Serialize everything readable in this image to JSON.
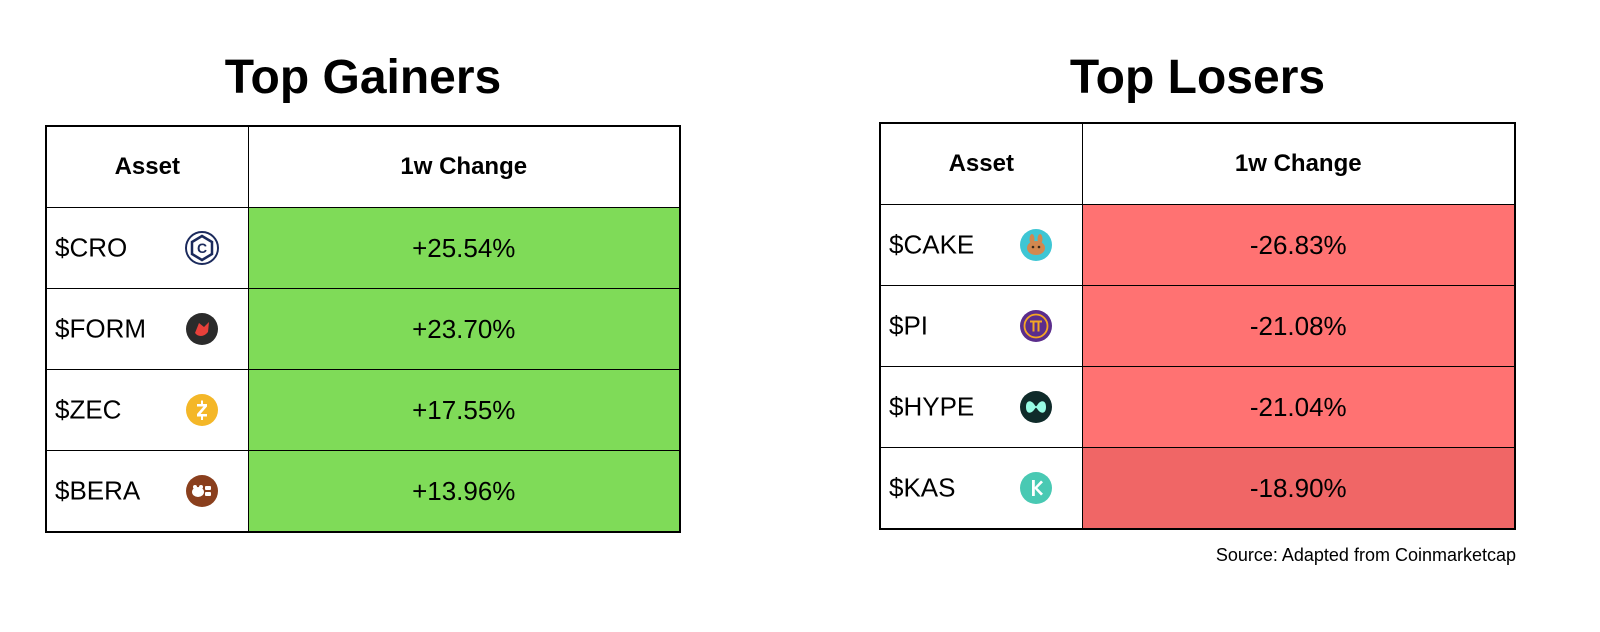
{
  "colors": {
    "gain_fill": "#7fdb58",
    "loss_fill": "#ff7272",
    "loss_fill_highlight": "#f06666",
    "border": "#000000"
  },
  "chart_data": [
    {
      "type": "table",
      "title": "Top Gainers",
      "columns": [
        "Asset",
        "1w Change"
      ],
      "rows": [
        {
          "asset": "$CRO",
          "icon": "cro-coin-icon",
          "change": "+25.54%",
          "value": 25.54
        },
        {
          "asset": "$FORM",
          "icon": "form-coin-icon",
          "change": "+23.70%",
          "value": 23.7
        },
        {
          "asset": "$ZEC",
          "icon": "zec-coin-icon",
          "change": "+17.55%",
          "value": 17.55
        },
        {
          "asset": "$BERA",
          "icon": "bera-coin-icon",
          "change": "+13.96%",
          "value": 13.96
        }
      ]
    },
    {
      "type": "table",
      "title": "Top Losers",
      "columns": [
        "Asset",
        "1w Change"
      ],
      "rows": [
        {
          "asset": "$CAKE",
          "icon": "cake-coin-icon",
          "change": "-26.83%",
          "value": -26.83
        },
        {
          "asset": "$PI",
          "icon": "pi-coin-icon",
          "change": "-21.08%",
          "value": -21.08
        },
        {
          "asset": "$HYPE",
          "icon": "hype-coin-icon",
          "change": "-21.04%",
          "value": -21.04
        },
        {
          "asset": "$KAS",
          "icon": "kas-coin-icon",
          "change": "-18.90%",
          "value": -18.9
        }
      ]
    }
  ],
  "source": "Source: Adapted from Coinmarketcap"
}
